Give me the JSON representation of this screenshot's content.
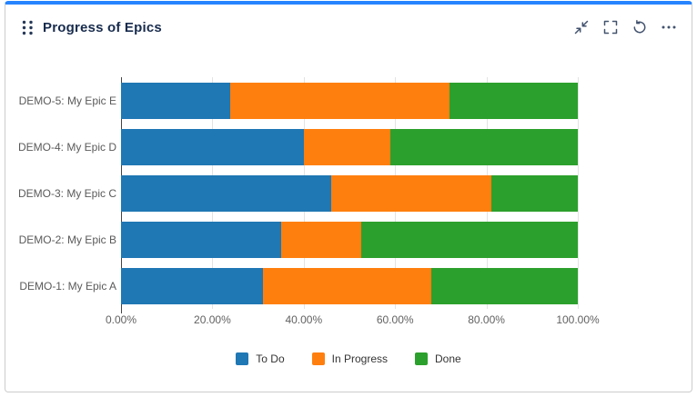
{
  "card": {
    "title": "Progress of Epics",
    "accent_color": "#2684ff",
    "toolbar_icons": [
      "collapse-icon",
      "fullscreen-icon",
      "refresh-icon",
      "more-icon"
    ]
  },
  "chart_data": {
    "type": "bar",
    "orientation": "horizontal",
    "stacked": true,
    "title": "Progress of Epics",
    "categories": [
      "DEMO-5: My Epic E",
      "DEMO-4: My Epic D",
      "DEMO-3: My Epic C",
      "DEMO-2: My Epic B",
      "DEMO-1: My Epic A"
    ],
    "series": [
      {
        "name": "To Do",
        "color": "#1f77b4",
        "values": [
          24,
          40,
          46,
          35,
          31
        ]
      },
      {
        "name": "In Progress",
        "color": "#ff7f0e",
        "values": [
          48,
          19,
          35,
          17.5,
          37
        ]
      },
      {
        "name": "Done",
        "color": "#2ca02c",
        "values": [
          28,
          41,
          19,
          47.5,
          32
        ]
      }
    ],
    "x_ticks": [
      "0.00%",
      "20.00%",
      "40.00%",
      "60.00%",
      "80.00%",
      "100.00%"
    ],
    "xlim": [
      0,
      100
    ],
    "grid": true,
    "axis_color": "#444444",
    "grid_color": "#e3e3e3",
    "legend_position": "bottom"
  }
}
